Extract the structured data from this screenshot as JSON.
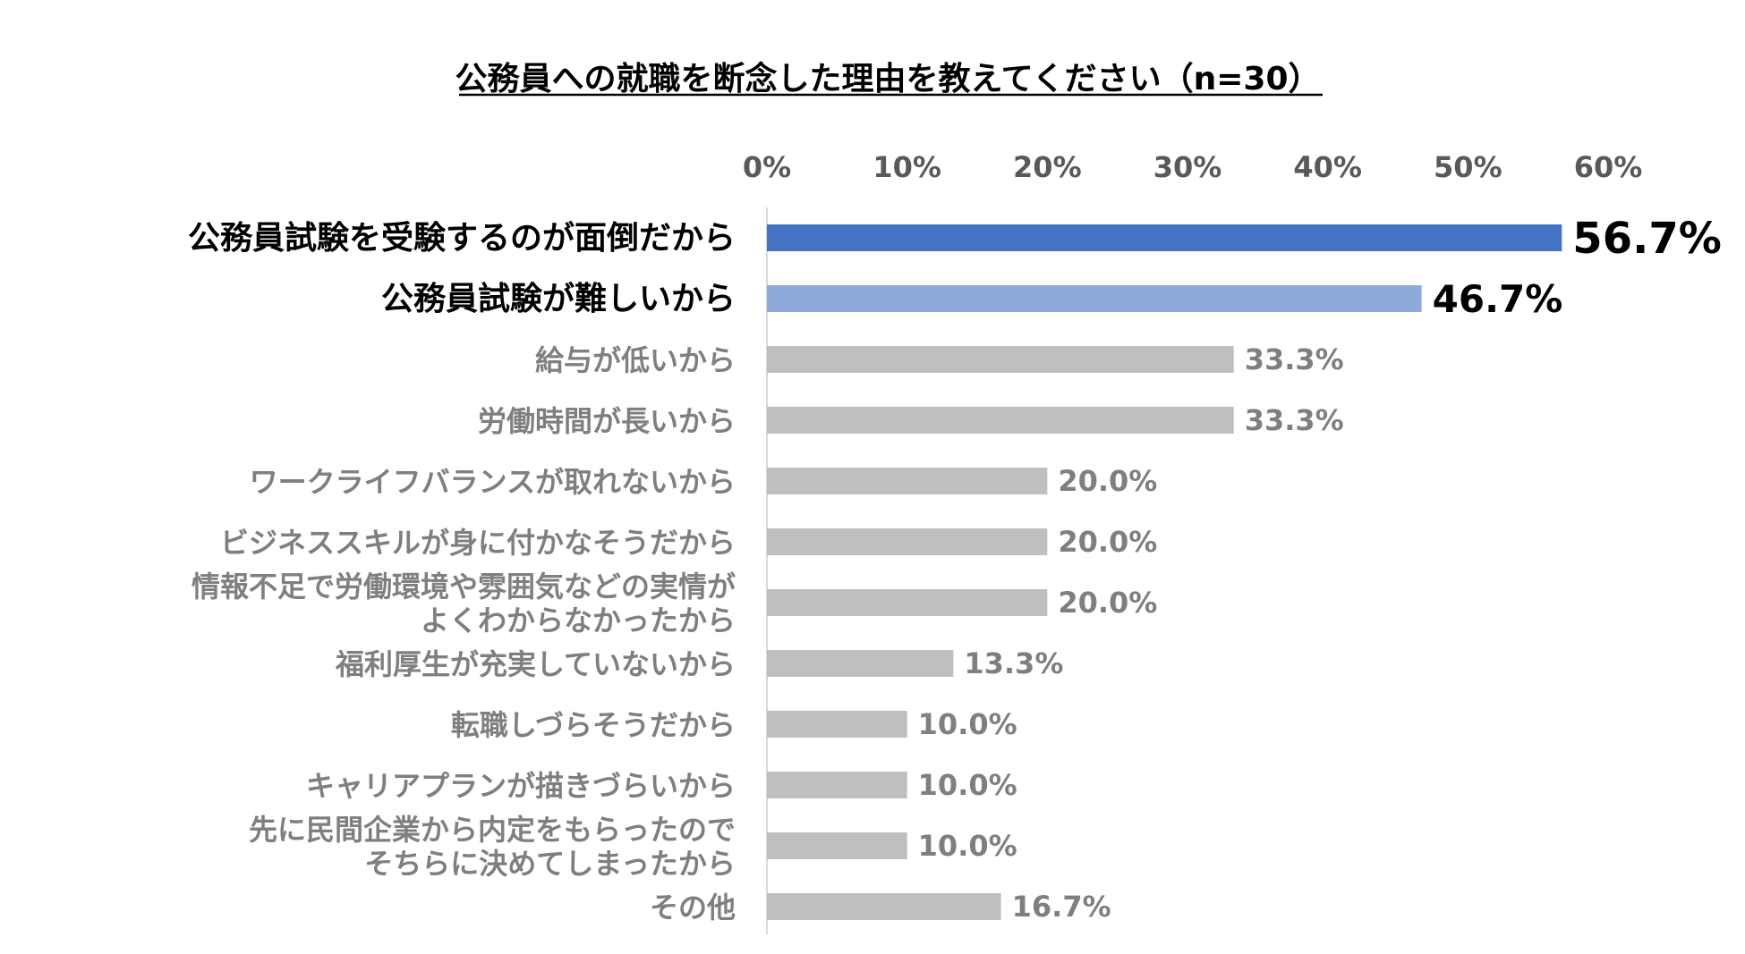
{
  "chart_data": {
    "type": "bar",
    "orientation": "horizontal",
    "title": "公務員への就職を断念した理由を教えてください（n=30）",
    "xlabel": "",
    "ylabel": "",
    "xlim": [
      0,
      60
    ],
    "ticks": [
      "0%",
      "10%",
      "20%",
      "30%",
      "40%",
      "50%",
      "60%"
    ],
    "categories": [
      [
        "公務員試験を受験するのが面倒だから"
      ],
      [
        "公務員試験が難しいから"
      ],
      [
        "給与が低いから"
      ],
      [
        "労働時間が長いから"
      ],
      [
        "ワークライフバランスが取れないから"
      ],
      [
        "ビジネススキルが身に付かなそうだから"
      ],
      [
        "情報不足で労働環境や雰囲気などの実情が",
        "よくわからなかったから"
      ],
      [
        "福利厚生が充実していないから"
      ],
      [
        "転職しづらそうだから"
      ],
      [
        "キャリアプランが描きづらいから"
      ],
      [
        "先に民間企業から内定をもらったので",
        "そちらに決めてしまったから"
      ],
      [
        "その他"
      ]
    ],
    "values": [
      56.7,
      46.7,
      33.3,
      33.3,
      20.0,
      20.0,
      20.0,
      13.3,
      10.0,
      10.0,
      10.0,
      16.7
    ],
    "value_labels": [
      "56.7%",
      "46.7%",
      "33.3%",
      "33.3%",
      "20.0%",
      "20.0%",
      "20.0%",
      "13.3%",
      "10.0%",
      "10.0%",
      "10.0%",
      "16.7%"
    ],
    "colors": {
      "highlight_1": "#4472c4",
      "highlight_2": "#8eaadb",
      "default": "#bfbfbf",
      "axis": "#d9d9d9"
    },
    "grid": false,
    "legend": "none"
  }
}
